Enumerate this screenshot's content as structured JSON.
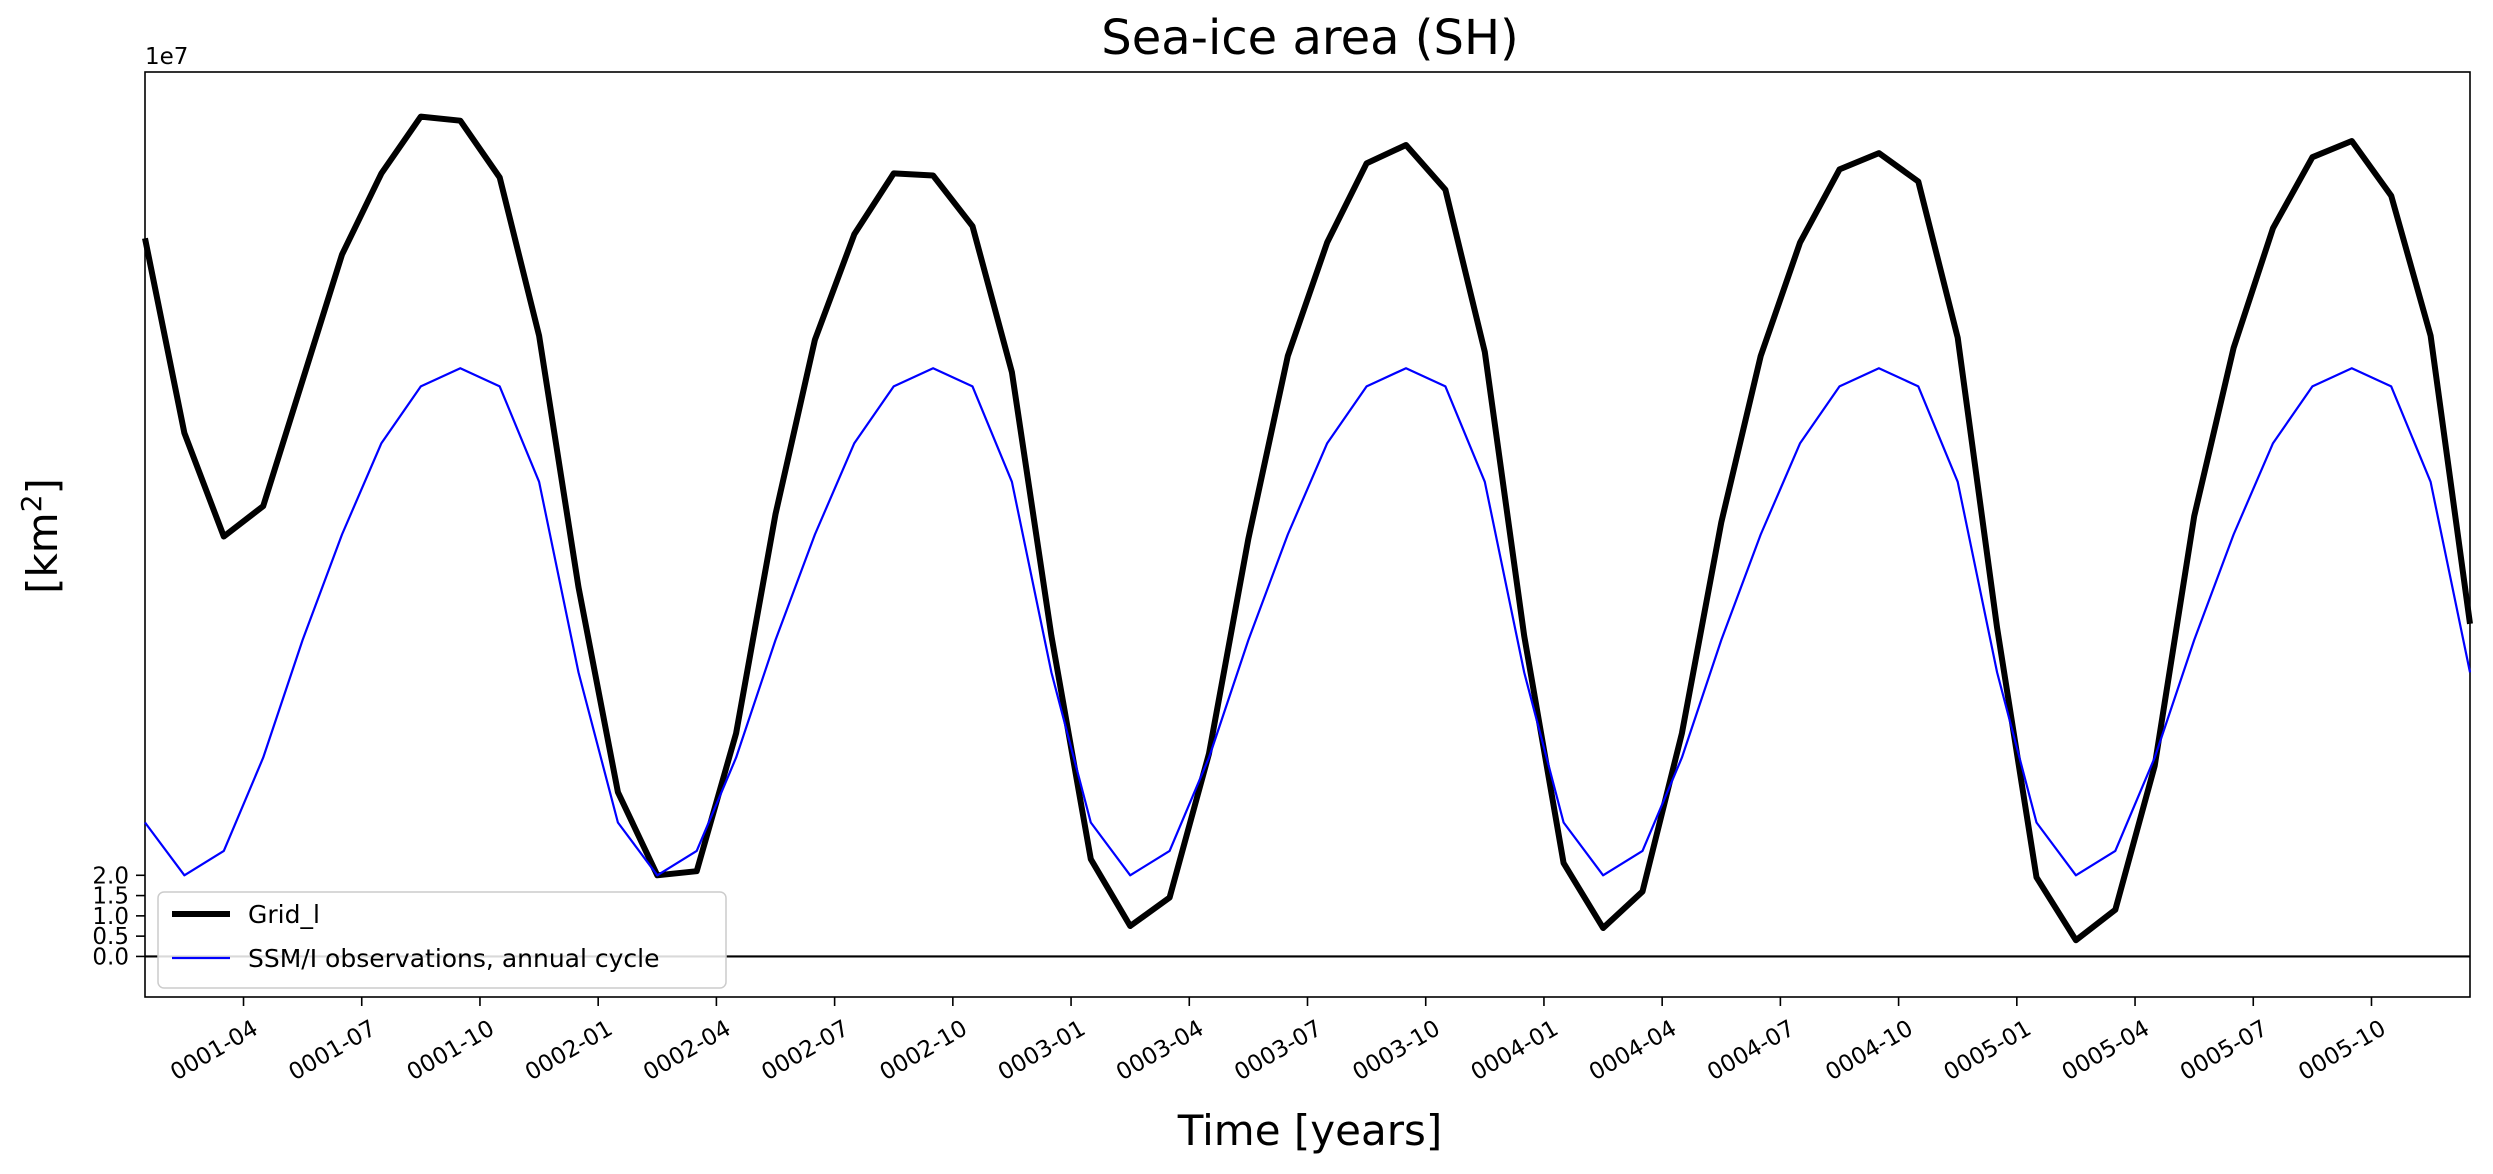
{
  "chart_data": {
    "type": "line",
    "title": "Sea-ice area (SH)",
    "xlabel": "Time [years]",
    "ylabel_main": "[km",
    "ylabel_sup": "2",
    "ylabel_close": "]",
    "y_offset_text": "1e7",
    "ylim": [
      -1.0,
      21.8
    ],
    "y_scale_factor": 10000000,
    "y_ticks": [
      0.0,
      0.5,
      1.0,
      1.5,
      2.0
    ],
    "y_tick_labels": [
      "0.0",
      "0.5",
      "1.0",
      "1.5",
      "2.0"
    ],
    "xlim": [
      0.0,
      59.0
    ],
    "x_ticks": [
      2.5,
      5.5,
      8.5,
      11.5,
      14.5,
      17.5,
      20.5,
      23.5,
      26.5,
      29.5,
      32.5,
      35.5,
      38.5,
      41.5,
      44.5,
      47.5,
      50.5,
      53.5,
      56.5
    ],
    "x_tick_labels": [
      "0001-04",
      "0001-07",
      "0001-10",
      "0002-01",
      "0002-04",
      "0002-07",
      "0002-10",
      "0003-01",
      "0003-04",
      "0003-07",
      "0003-10",
      "0004-01",
      "0004-04",
      "0004-07",
      "0004-10",
      "0005-01",
      "0005-04",
      "0005-07",
      "0005-10"
    ],
    "hline_at": 0,
    "series": [
      {
        "name": "Grid_l",
        "color": "#000000",
        "linewidth": "thick",
        "values": [
          17.7,
          12.9,
          10.35,
          11.1,
          14.2,
          17.3,
          19.3,
          20.7,
          20.6,
          19.2,
          15.3,
          9.1,
          4.05,
          2.0,
          2.1,
          5.5,
          10.9,
          15.2,
          17.8,
          19.3,
          19.25,
          18.0,
          14.4,
          7.9,
          2.4,
          0.75,
          1.45,
          5.0,
          10.3,
          14.8,
          17.6,
          19.55,
          20.0,
          18.9,
          14.9,
          7.9,
          2.3,
          0.7,
          1.6,
          5.5,
          10.7,
          14.8,
          17.6,
          19.4,
          19.8,
          19.1,
          15.25,
          8.1,
          1.95,
          0.4,
          1.15,
          4.7,
          10.85,
          15.0,
          17.95,
          19.7,
          20.1,
          18.75,
          15.3,
          8.2
        ]
      },
      {
        "name": "SSM/I observations, annual cycle",
        "color": "#0000ff",
        "linewidth": "thin",
        "values": [
          3.3,
          2.0,
          2.6,
          4.9,
          7.8,
          10.4,
          12.65,
          14.05,
          14.5,
          14.05,
          11.7,
          7.0,
          3.3,
          2.0,
          2.6,
          4.9,
          7.8,
          10.4,
          12.65,
          14.05,
          14.5,
          14.05,
          11.7,
          7.0,
          3.3,
          2.0,
          2.6,
          4.9,
          7.8,
          10.4,
          12.65,
          14.05,
          14.5,
          14.05,
          11.7,
          7.0,
          3.3,
          2.0,
          2.6,
          4.9,
          7.8,
          10.4,
          12.65,
          14.05,
          14.5,
          14.05,
          11.7,
          7.0,
          3.3,
          2.0,
          2.6,
          4.9,
          7.8,
          10.4,
          12.65,
          14.05,
          14.5,
          14.05,
          11.7,
          7.0
        ]
      }
    ],
    "legend_position": "lower-left"
  }
}
